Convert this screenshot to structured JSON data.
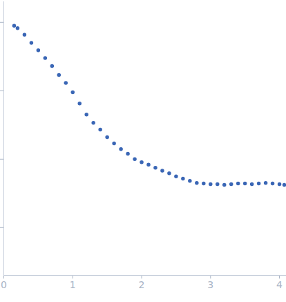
{
  "chart_data": {
    "type": "scatter",
    "x": [
      0.15,
      0.2,
      0.3,
      0.4,
      0.5,
      0.6,
      0.7,
      0.8,
      0.9,
      1.0,
      1.1,
      1.2,
      1.3,
      1.4,
      1.5,
      1.6,
      1.7,
      1.8,
      1.9,
      2.0,
      2.1,
      2.2,
      2.3,
      2.4,
      2.5,
      2.6,
      2.7,
      2.8,
      2.9,
      3.0,
      3.1,
      3.2,
      3.3,
      3.4,
      3.5,
      3.6,
      3.7,
      3.8,
      3.9,
      4.0,
      4.07
    ],
    "values": [
      0.89,
      0.82,
      0.66,
      0.5,
      0.39,
      0.3,
      0.23,
      0.17,
      0.13,
      0.095,
      0.065,
      0.045,
      0.034,
      0.027,
      0.021,
      0.017,
      0.014,
      0.012,
      0.01,
      0.009,
      0.0083,
      0.0075,
      0.0068,
      0.0062,
      0.0056,
      0.0052,
      0.0048,
      0.0045,
      0.0044,
      0.0043,
      0.0043,
      0.0042,
      0.0043,
      0.0044,
      0.0044,
      0.0043,
      0.0044,
      0.0045,
      0.0044,
      0.0043,
      0.0042
    ],
    "color": "#3a66b5",
    "marker": "circle",
    "log": "y",
    "xlim": [
      0,
      4.1
    ],
    "xticks": [
      0,
      1,
      2,
      3,
      4
    ],
    "ylim": [
      0.0002,
      2
    ],
    "yticks": [
      0.001,
      0.01,
      0.1,
      1
    ],
    "tick_labels": "x"
  }
}
